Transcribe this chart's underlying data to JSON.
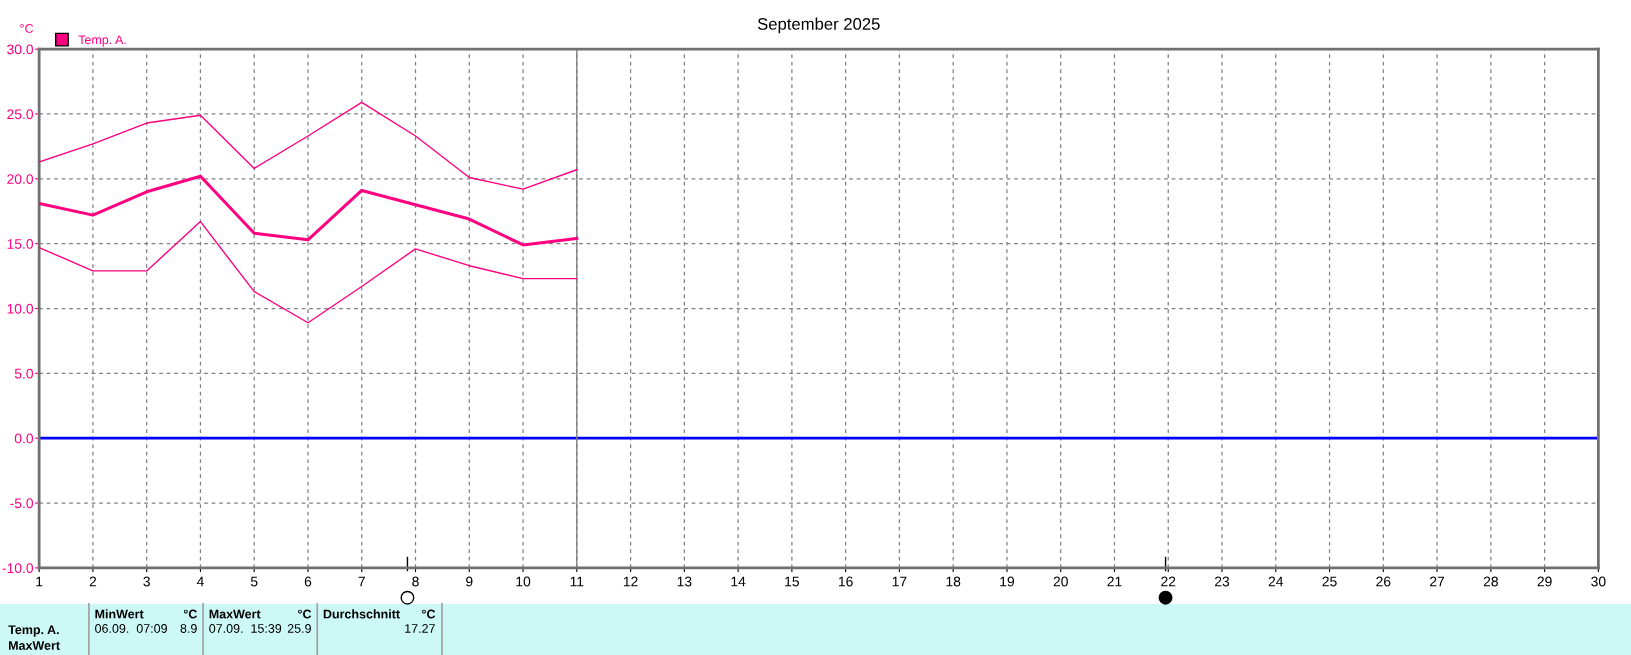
{
  "chart_data": {
    "type": "line",
    "title": "September 2025",
    "ylabel": "°C",
    "x": [
      1,
      2,
      3,
      4,
      5,
      6,
      7,
      8,
      9,
      10,
      11
    ],
    "series": [
      {
        "color": "#ff0080",
        "values": [
          21.3,
          22.7,
          24.3,
          24.9,
          20.8,
          23.3,
          25.9,
          23.3,
          20.1,
          19.2,
          20.7
        ]
      },
      {
        "name": "Temp. A.",
        "color": "#ff0080",
        "values": [
          18.1,
          17.2,
          19.0,
          20.2,
          15.8,
          15.3,
          19.1,
          18.0,
          16.9,
          14.9,
          15.4
        ]
      },
      {
        "color": "#ff0080",
        "values": [
          14.7,
          12.9,
          12.9,
          16.7,
          11.3,
          8.9,
          11.7,
          14.6,
          13.3,
          12.3,
          12.3
        ]
      }
    ],
    "xlim": [
      1,
      30
    ],
    "xticks": [
      1,
      2,
      3,
      4,
      5,
      6,
      7,
      8,
      9,
      10,
      11,
      12,
      13,
      14,
      15,
      16,
      17,
      18,
      19,
      20,
      21,
      22,
      23,
      24,
      25,
      26,
      27,
      28,
      29,
      30
    ],
    "ylim": [
      -10,
      30
    ],
    "yticks": [
      {
        "value": -10,
        "label": "-10.0"
      },
      {
        "value": -5,
        "label": "-5.0"
      },
      {
        "value": 0,
        "label": "0.0"
      },
      {
        "value": 5,
        "label": "5.0"
      },
      {
        "value": 10,
        "label": "10.0"
      },
      {
        "value": 15,
        "label": "15.0"
      },
      {
        "value": 20,
        "label": "20.0"
      },
      {
        "value": 25,
        "label": "25.0"
      },
      {
        "value": 30,
        "label": "30.0"
      }
    ],
    "ref_lines": [
      {
        "axis": "y",
        "value": 0,
        "color": "#0000ff"
      },
      {
        "axis": "x",
        "value": 11,
        "color": "#808080"
      }
    ],
    "grid": true,
    "legend": "top left",
    "line_style": "solid",
    "marker": "none",
    "annotations": [
      "Temp. A.",
      "MaxWert",
      "MinWert",
      "°C",
      "06.09.  07:09",
      "8.9",
      "MaxWert",
      "°C",
      "07.09.  15:39",
      "25.9",
      "Durchschnitt",
      "°C",
      "17.27"
    ]
  }
}
